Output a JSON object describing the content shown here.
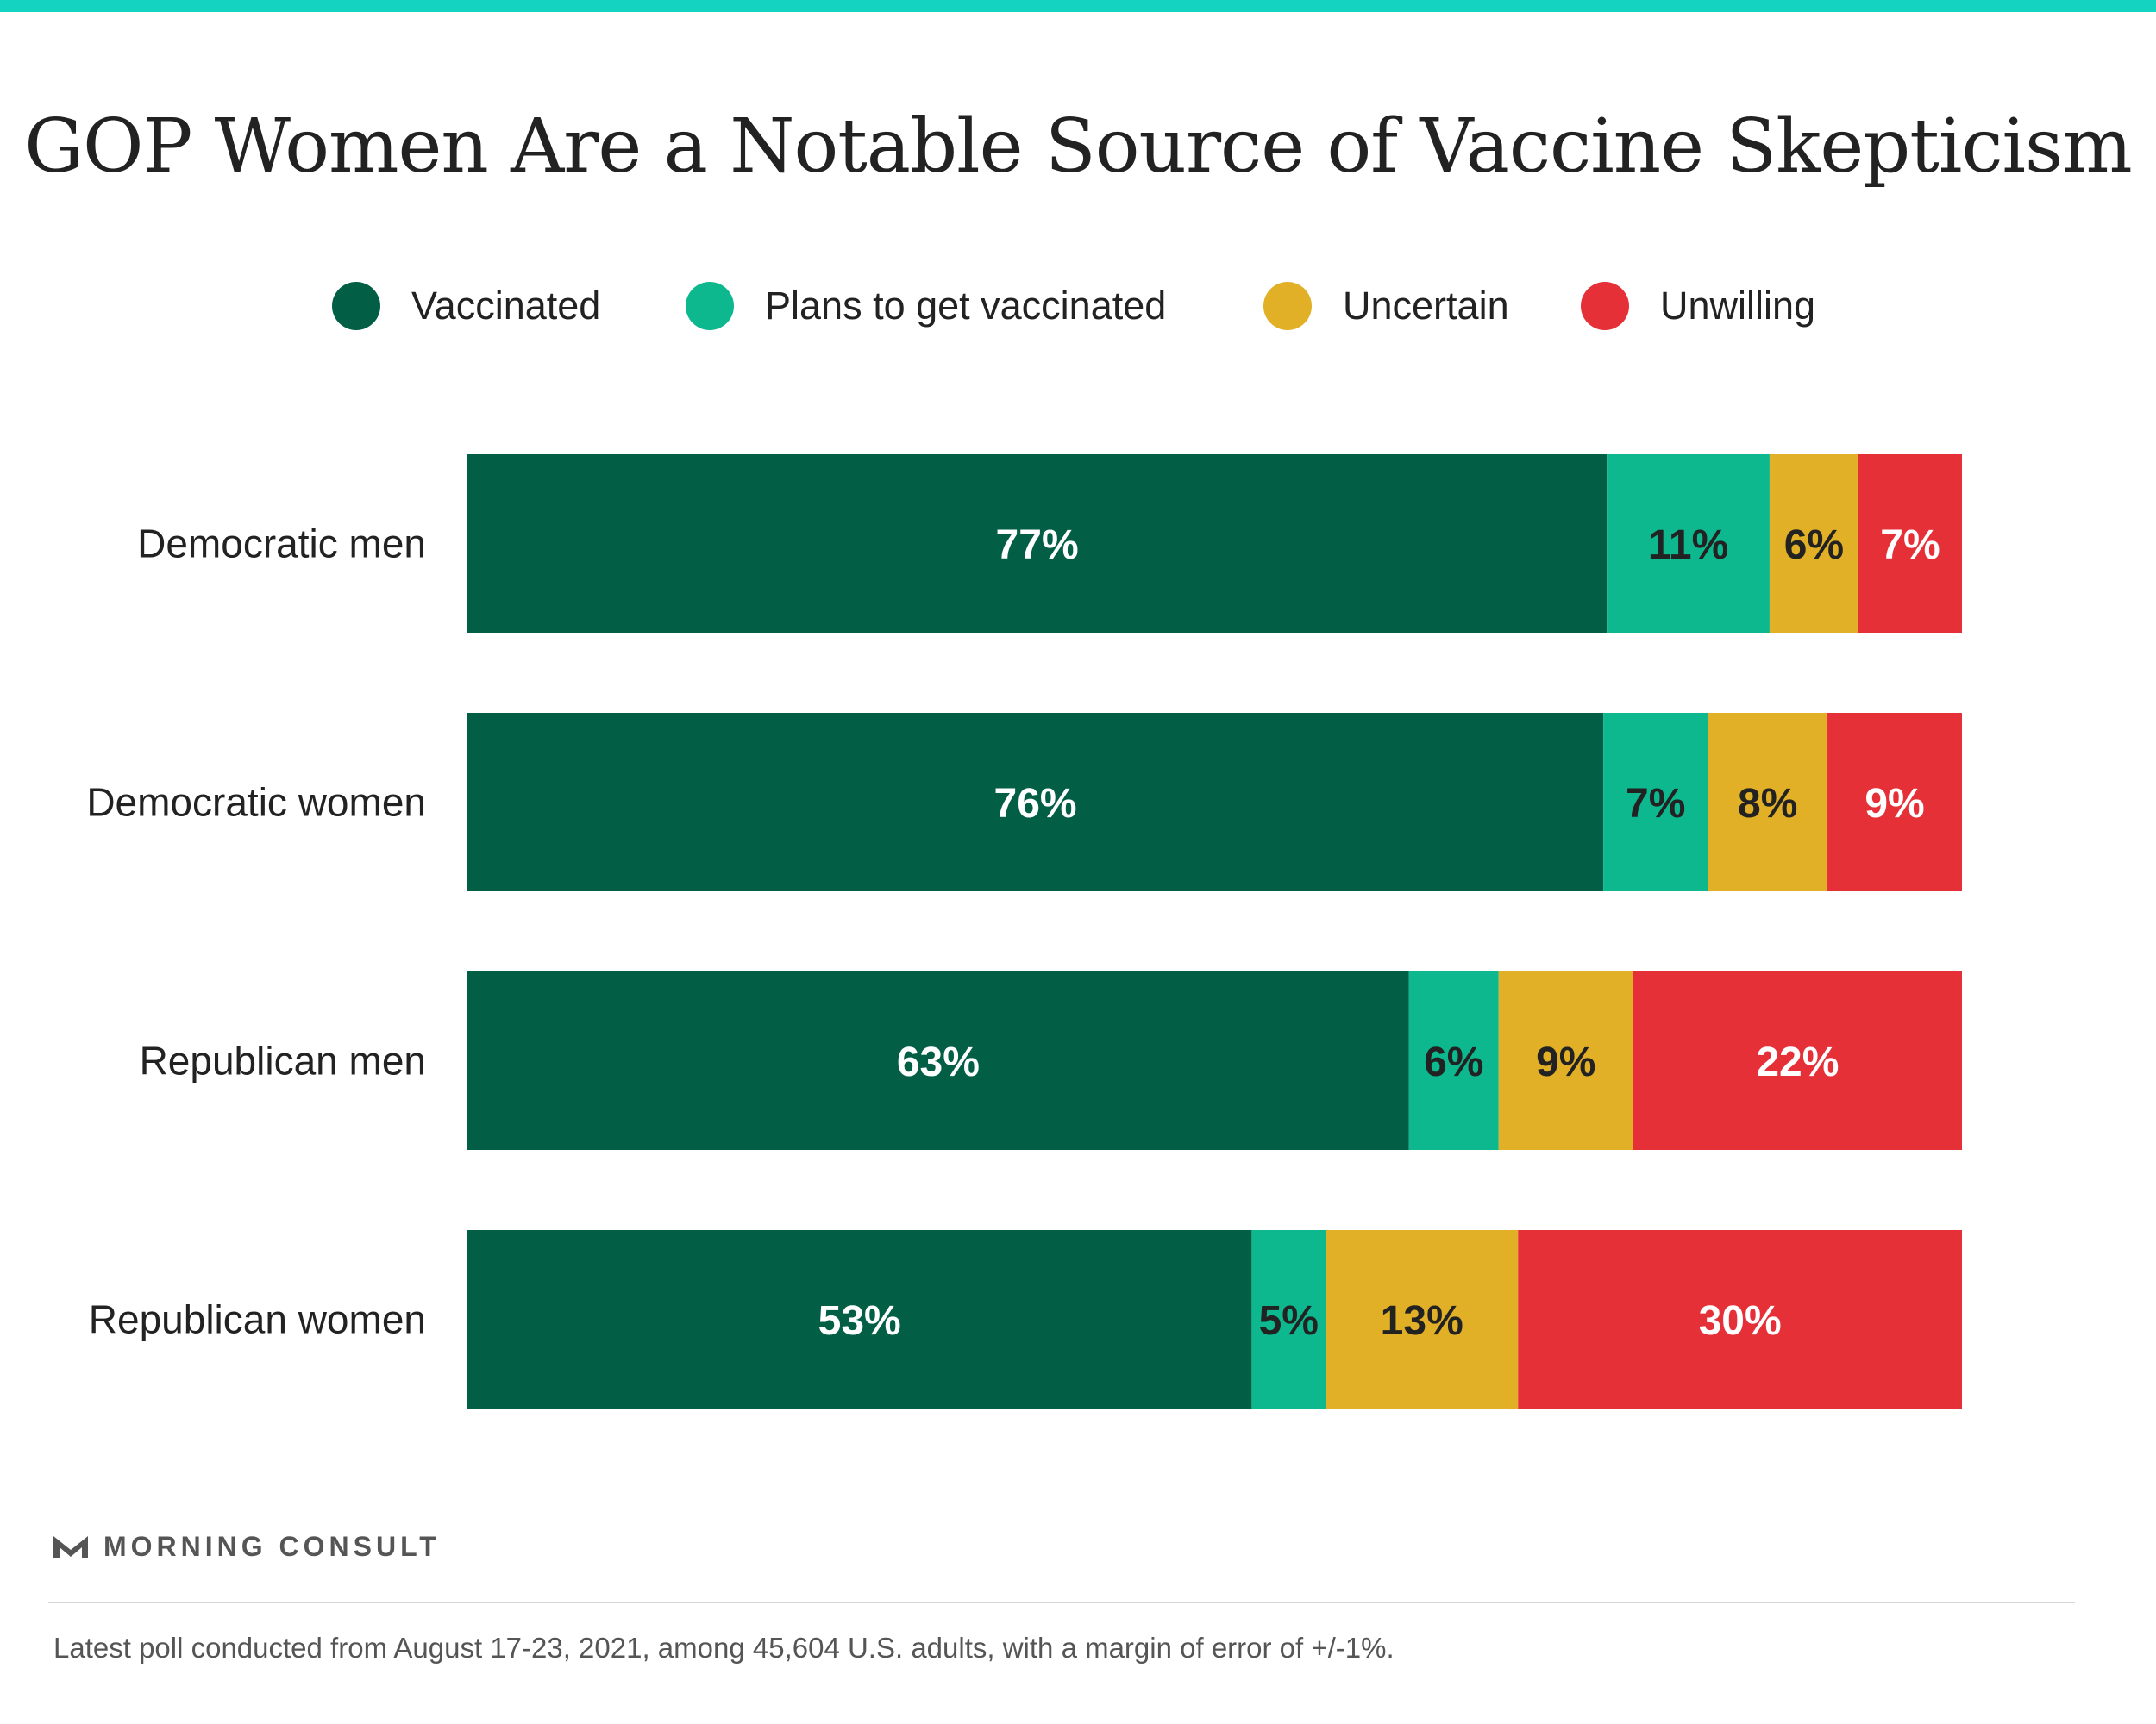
{
  "header": {
    "accent_color": "#14d3c1"
  },
  "legend": [
    {
      "label": "Vaccinated",
      "color": "#025e45"
    },
    {
      "label": "Plans to get vaccinated",
      "color": "#0db88f"
    },
    {
      "label": "Uncertain",
      "color": "#e1b026"
    },
    {
      "label": "Unwilling",
      "color": "#e63038"
    }
  ],
  "chart_data": {
    "type": "bar",
    "orientation": "horizontal",
    "stacked": true,
    "normalized": "percent",
    "title": "GOP Women Are a Notable Source of Vaccine Skepticism",
    "xlabel": "",
    "ylabel": "",
    "categories": [
      "Democratic men",
      "Democratic women",
      "Republican men",
      "Republican women"
    ],
    "series": [
      {
        "name": "Vaccinated",
        "color": "#025e45",
        "label_color": "#ffffff",
        "values": [
          77,
          76,
          63,
          53
        ]
      },
      {
        "name": "Plans to get vaccinated",
        "color": "#0db88f",
        "label_color": "#222222",
        "values": [
          11,
          7,
          6,
          5
        ]
      },
      {
        "name": "Uncertain",
        "color": "#e1b026",
        "label_color": "#222222",
        "values": [
          6,
          8,
          9,
          13
        ]
      },
      {
        "name": "Unwilling",
        "color": "#e63038",
        "label_color": "#ffffff",
        "values": [
          7,
          9,
          22,
          30
        ]
      }
    ],
    "value_suffix": "%",
    "grid": false,
    "legend_position": "top"
  },
  "brand": {
    "name": "MORNING CONSULT"
  },
  "footnote": "Latest poll conducted from August 17-23, 2021, among 45,604 U.S. adults, with a margin of error of +/-1%."
}
